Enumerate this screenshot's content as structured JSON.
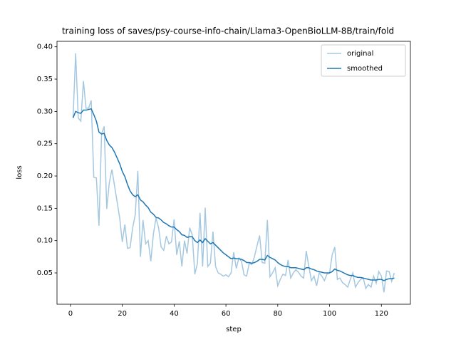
{
  "chart_data": {
    "type": "line",
    "title": "training loss of saves/psy-course-info-chain/Llama3-OpenBioLLM-8B/train/fold",
    "x_label": "step",
    "y_label": "loss",
    "x": [
      1,
      2,
      3,
      4,
      5,
      6,
      7,
      8,
      9,
      10,
      11,
      12,
      13,
      14,
      15,
      16,
      17,
      18,
      19,
      20,
      21,
      22,
      23,
      24,
      25,
      26,
      27,
      28,
      29,
      30,
      31,
      32,
      33,
      34,
      35,
      36,
      37,
      38,
      39,
      40,
      41,
      42,
      43,
      44,
      45,
      46,
      47,
      48,
      49,
      50,
      51,
      52,
      53,
      54,
      55,
      56,
      57,
      58,
      59,
      60,
      61,
      62,
      63,
      64,
      65,
      66,
      67,
      68,
      69,
      70,
      71,
      72,
      73,
      74,
      75,
      76,
      77,
      78,
      79,
      80,
      81,
      82,
      83,
      84,
      85,
      86,
      87,
      88,
      89,
      90,
      91,
      92,
      93,
      94,
      95,
      96,
      97,
      98,
      99,
      100,
      101,
      102,
      103,
      104,
      105,
      106,
      107,
      108,
      109,
      110,
      111,
      112,
      113,
      114,
      115,
      116,
      117,
      118,
      119,
      120,
      121,
      122,
      123,
      124,
      125
    ],
    "series": [
      {
        "name": "original",
        "color": "#a5c8e1",
        "values": [
          0.29,
          0.39,
          0.29,
          0.285,
          0.347,
          0.305,
          0.305,
          0.317,
          0.198,
          0.197,
          0.123,
          0.265,
          0.277,
          0.149,
          0.19,
          0.21,
          0.185,
          0.16,
          0.135,
          0.098,
          0.125,
          0.088,
          0.089,
          0.12,
          0.14,
          0.208,
          0.075,
          0.132,
          0.095,
          0.1,
          0.068,
          0.11,
          0.135,
          0.12,
          0.09,
          0.085,
          0.107,
          0.095,
          0.098,
          0.133,
          0.078,
          0.099,
          0.06,
          0.1,
          0.08,
          0.12,
          0.109,
          0.048,
          0.065,
          0.143,
          0.06,
          0.151,
          0.06,
          0.065,
          0.114,
          0.06,
          0.05,
          0.048,
          0.045,
          0.047,
          0.044,
          0.05,
          0.082,
          0.057,
          0.073,
          0.068,
          0.047,
          0.045,
          0.065,
          0.063,
          0.075,
          0.092,
          0.108,
          0.066,
          0.065,
          0.132,
          0.044,
          0.05,
          0.058,
          0.03,
          0.04,
          0.048,
          0.046,
          0.07,
          0.042,
          0.05,
          0.055,
          0.051,
          0.045,
          0.042,
          0.084,
          0.06,
          0.038,
          0.045,
          0.03,
          0.05,
          0.045,
          0.038,
          0.048,
          0.05,
          0.078,
          0.09,
          0.04,
          0.042,
          0.035,
          0.032,
          0.028,
          0.04,
          0.05,
          0.028,
          0.035,
          0.04,
          0.042,
          0.026,
          0.032,
          0.028,
          0.045,
          0.034,
          0.052,
          0.045,
          0.02,
          0.053,
          0.052,
          0.037,
          0.05
        ]
      },
      {
        "name": "smoothed",
        "color": "#1f77b4",
        "values": [
          0.29,
          0.3,
          0.298,
          0.297,
          0.302,
          0.302,
          0.303,
          0.304,
          0.295,
          0.285,
          0.268,
          0.265,
          0.266,
          0.255,
          0.248,
          0.244,
          0.237,
          0.228,
          0.219,
          0.207,
          0.199,
          0.187,
          0.177,
          0.171,
          0.168,
          0.171,
          0.163,
          0.16,
          0.155,
          0.151,
          0.144,
          0.141,
          0.136,
          0.135,
          0.132,
          0.128,
          0.126,
          0.123,
          0.121,
          0.121,
          0.117,
          0.114,
          0.109,
          0.108,
          0.105,
          0.106,
          0.106,
          0.1,
          0.097,
          0.101,
          0.097,
          0.103,
          0.099,
          0.095,
          0.097,
          0.093,
          0.089,
          0.085,
          0.081,
          0.078,
          0.075,
          0.072,
          0.073,
          0.072,
          0.072,
          0.071,
          0.069,
          0.066,
          0.066,
          0.065,
          0.066,
          0.068,
          0.071,
          0.071,
          0.07,
          0.077,
          0.074,
          0.072,
          0.07,
          0.066,
          0.063,
          0.061,
          0.06,
          0.06,
          0.058,
          0.058,
          0.058,
          0.057,
          0.056,
          0.055,
          0.058,
          0.058,
          0.056,
          0.055,
          0.053,
          0.052,
          0.051,
          0.05,
          0.05,
          0.05,
          0.052,
          0.056,
          0.054,
          0.053,
          0.051,
          0.049,
          0.047,
          0.046,
          0.046,
          0.044,
          0.043,
          0.043,
          0.042,
          0.041,
          0.04,
          0.039,
          0.039,
          0.039,
          0.04,
          0.04,
          0.038,
          0.04,
          0.041,
          0.041,
          0.042
        ]
      }
    ],
    "xlim": [
      -5.2,
      131.2
    ],
    "ylim": [
      0.0015,
      0.4085
    ],
    "xticks": [
      0,
      20,
      40,
      60,
      80,
      100,
      120
    ],
    "yticks": [
      {
        "value": 0.05,
        "label": "0.05"
      },
      {
        "value": 0.1,
        "label": "0.10"
      },
      {
        "value": 0.15,
        "label": "0.15"
      },
      {
        "value": 0.2,
        "label": "0.20"
      },
      {
        "value": 0.25,
        "label": "0.25"
      },
      {
        "value": 0.3,
        "label": "0.30"
      },
      {
        "value": 0.35,
        "label": "0.35"
      },
      {
        "value": 0.4,
        "label": "0.40"
      }
    ],
    "legend": "upper right"
  }
}
